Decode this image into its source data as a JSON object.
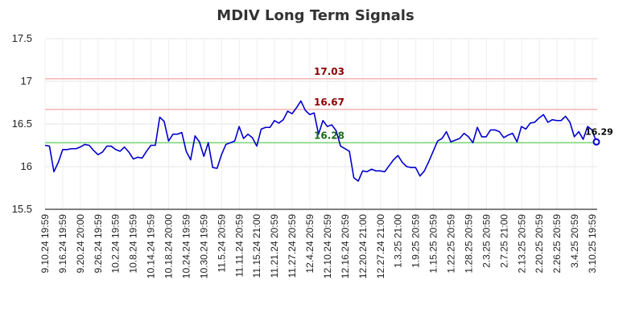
{
  "chart_data": {
    "type": "line",
    "title": "MDIV Long Term Signals",
    "xlabel": "",
    "ylabel": "",
    "ylim": [
      15.5,
      17.5
    ],
    "yticks": [
      "15.5",
      "16",
      "16.5",
      "17",
      "17.5"
    ],
    "ytick_values": [
      15.5,
      16,
      16.5,
      17,
      17.5
    ],
    "grid": true,
    "x_tick_labels": [
      "9.10.24 19:59",
      "9.16.24 19:59",
      "9.20.24 20:00",
      "9.26.24 19:59",
      "10.2.24 19:59",
      "10.8.24 19:59",
      "10.14.24 19:59",
      "10.18.24 20:00",
      "10.24.24 19:59",
      "10.30.24 19:59",
      "11.5.24 20:59",
      "11.11.24 20:59",
      "11.15.24 21:00",
      "11.21.24 20:59",
      "11.27.24 20:59",
      "12.4.24 20:59",
      "12.10.24 20:59",
      "12.16.24 20:59",
      "12.20.24 21:00",
      "12.27.24 21:00",
      "1.3.25 21:00",
      "1.9.25 20:59",
      "1.15.25 20:59",
      "1.22.25 20:59",
      "1.28.25 20:59",
      "2.3.25 20:59",
      "2.7.25 21:00",
      "2.13.25 20:59",
      "2.20.25 20:59",
      "2.26.25 20:59",
      "3.4.25 20:59",
      "3.10.25 19:59"
    ],
    "reference_lines": [
      {
        "label": "17.03",
        "value": 17.03,
        "color": "#f4b9b9",
        "label_color": "#8b0000"
      },
      {
        "label": "16.67",
        "value": 16.67,
        "color": "#f4b9b9",
        "label_color": "#8b0000"
      },
      {
        "label": "16.28",
        "value": 16.28,
        "color": "#7fd67f",
        "label_color": "#1a6b1a"
      }
    ],
    "last_value_label": "16.29",
    "series": [
      {
        "color": "#0000cc",
        "values": [
          16.25,
          16.24,
          15.94,
          16.05,
          16.2,
          16.2,
          16.21,
          16.21,
          16.23,
          16.26,
          16.25,
          16.19,
          16.14,
          16.17,
          16.24,
          16.24,
          16.2,
          16.18,
          16.23,
          16.17,
          16.09,
          16.11,
          16.1,
          16.18,
          16.25,
          16.25,
          16.58,
          16.53,
          16.3,
          16.38,
          16.38,
          16.4,
          16.18,
          16.08,
          16.36,
          16.29,
          16.12,
          16.28,
          15.99,
          15.98,
          16.14,
          16.26,
          16.28,
          16.3,
          16.47,
          16.33,
          16.38,
          16.34,
          16.24,
          16.44,
          16.46,
          16.46,
          16.54,
          16.51,
          16.55,
          16.65,
          16.62,
          16.69,
          16.77,
          16.66,
          16.61,
          16.63,
          16.38,
          16.54,
          16.47,
          16.49,
          16.42,
          16.24,
          16.21,
          16.18,
          15.87,
          15.83,
          15.95,
          15.94,
          15.97,
          15.95,
          15.95,
          15.94,
          16.01,
          16.08,
          16.13,
          16.05,
          16.0,
          15.99,
          15.99,
          15.89,
          15.95,
          16.06,
          16.18,
          16.3,
          16.33,
          16.41,
          16.29,
          16.31,
          16.33,
          16.39,
          16.35,
          16.28,
          16.46,
          16.35,
          16.35,
          16.43,
          16.43,
          16.41,
          16.34,
          16.37,
          16.39,
          16.29,
          16.47,
          16.44,
          16.51,
          16.52,
          16.57,
          16.61,
          16.52,
          16.55,
          16.54,
          16.54,
          16.59,
          16.52,
          16.35,
          16.41,
          16.32,
          16.47,
          16.43,
          16.29
        ]
      }
    ]
  }
}
